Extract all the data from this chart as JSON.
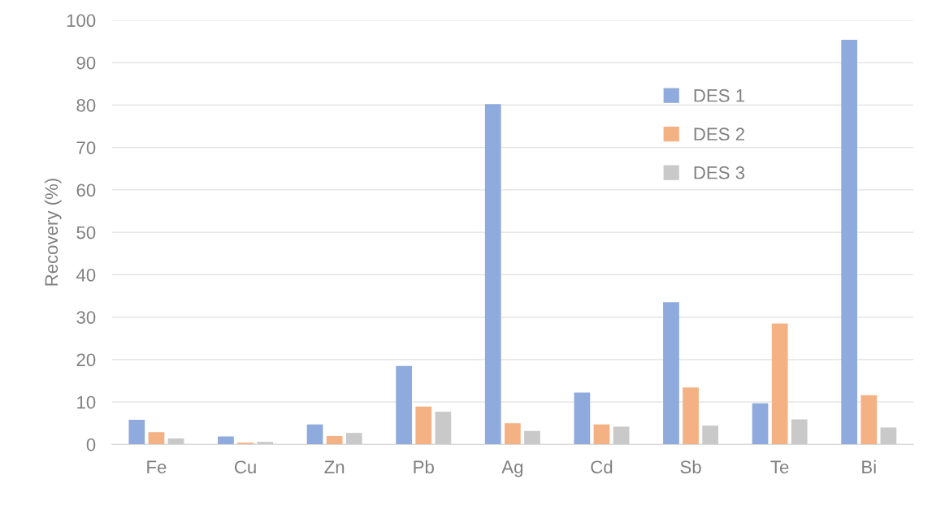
{
  "chart_data": {
    "type": "bar",
    "ylabel": "Recovery (%)",
    "categories": [
      "Fe",
      "Cu",
      "Zn",
      "Pb",
      "Ag",
      "Cd",
      "Sb",
      "Te",
      "Bi"
    ],
    "series": [
      {
        "name": "DES 1",
        "color": "#8faadc",
        "values": [
          5.8,
          1.9,
          4.7,
          18.5,
          80.2,
          12.2,
          33.5,
          9.7,
          95.4
        ]
      },
      {
        "name": "DES 2",
        "color": "#f4b183",
        "values": [
          2.9,
          0.4,
          2.0,
          8.9,
          5.0,
          4.7,
          13.4,
          28.5,
          11.6
        ]
      },
      {
        "name": "DES 3",
        "color": "#c9c9c9",
        "values": [
          1.4,
          0.6,
          2.7,
          7.7,
          3.2,
          4.2,
          4.4,
          5.9,
          4.0
        ]
      }
    ],
    "ylim": [
      0,
      100
    ],
    "yticks": [
      0,
      10,
      20,
      30,
      40,
      50,
      60,
      70,
      80,
      90,
      100
    ],
    "grid": "y",
    "legend": "top right"
  }
}
